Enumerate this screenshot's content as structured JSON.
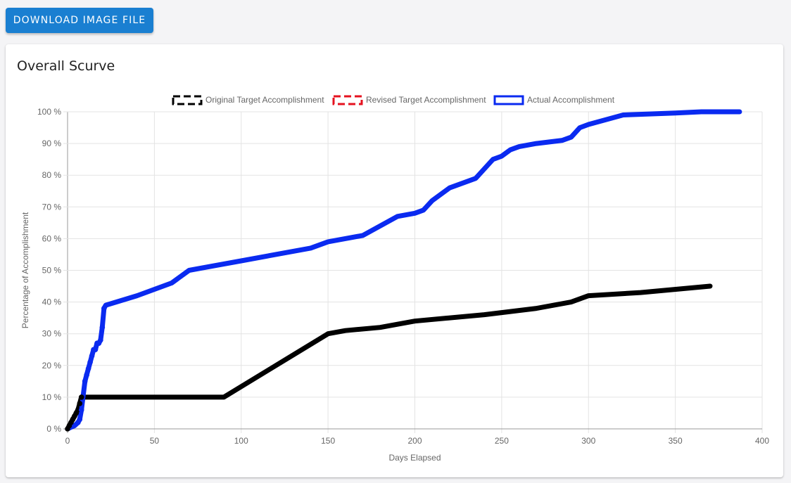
{
  "toolbar": {
    "download_label": "DOWNLOAD IMAGE FILE"
  },
  "card": {
    "title": "Overall Scurve"
  },
  "chart_data": {
    "type": "line",
    "xlabel": "Days Elapsed",
    "ylabel": "Percentage of Accomplishment",
    "xlim": [
      0,
      400
    ],
    "ylim": [
      0,
      100
    ],
    "x_ticks": [
      0,
      50,
      100,
      150,
      200,
      250,
      300,
      350,
      400
    ],
    "y_ticks": [
      0,
      10,
      20,
      30,
      40,
      50,
      60,
      70,
      80,
      90,
      100
    ],
    "y_tick_suffix": " %",
    "grid": true,
    "legend_position": "top",
    "series": [
      {
        "name": "Original Target Accomplishment",
        "color": "#000000",
        "legend_style": "dashed",
        "points": [
          [
            0,
            0
          ],
          [
            1,
            1
          ],
          [
            2,
            2
          ],
          [
            3,
            3
          ],
          [
            4,
            4
          ],
          [
            5,
            5
          ],
          [
            6,
            6
          ],
          [
            7,
            8
          ],
          [
            8,
            10
          ],
          [
            20,
            10
          ],
          [
            40,
            10
          ],
          [
            60,
            10
          ],
          [
            80,
            10
          ],
          [
            90,
            10
          ],
          [
            150,
            30
          ],
          [
            160,
            31
          ],
          [
            180,
            32
          ],
          [
            200,
            34
          ],
          [
            240,
            36
          ],
          [
            270,
            38
          ],
          [
            290,
            40
          ],
          [
            300,
            42
          ],
          [
            330,
            43
          ],
          [
            370,
            45
          ]
        ],
        "marker_points": [
          [
            0,
            0
          ],
          [
            1,
            1
          ],
          [
            2,
            2
          ],
          [
            3,
            3
          ],
          [
            4,
            4
          ],
          [
            5,
            5
          ],
          [
            6,
            6
          ],
          [
            7,
            8
          ],
          [
            8,
            10
          ]
        ]
      },
      {
        "name": "Revised Target Accomplishment",
        "color": "#e5121f",
        "legend_style": "dashed",
        "points": []
      },
      {
        "name": "Actual Accomplishment",
        "color": "#0a2af0",
        "legend_style": "solid",
        "points": [
          [
            0,
            0
          ],
          [
            2,
            0.5
          ],
          [
            4,
            1
          ],
          [
            6,
            2
          ],
          [
            7,
            3
          ],
          [
            8,
            6
          ],
          [
            10,
            15
          ],
          [
            11,
            17
          ],
          [
            12,
            19
          ],
          [
            13,
            21
          ],
          [
            14,
            23
          ],
          [
            15,
            25
          ],
          [
            16,
            25
          ],
          [
            17,
            27
          ],
          [
            18,
            27
          ],
          [
            19,
            28
          ],
          [
            20,
            32
          ],
          [
            21,
            38
          ],
          [
            22,
            39
          ],
          [
            40,
            42
          ],
          [
            60,
            46
          ],
          [
            70,
            50
          ],
          [
            100,
            53
          ],
          [
            140,
            57
          ],
          [
            150,
            59
          ],
          [
            170,
            61
          ],
          [
            190,
            67
          ],
          [
            200,
            68
          ],
          [
            205,
            69
          ],
          [
            210,
            72
          ],
          [
            220,
            76
          ],
          [
            235,
            79
          ],
          [
            245,
            85
          ],
          [
            250,
            86
          ],
          [
            255,
            88
          ],
          [
            260,
            89
          ],
          [
            270,
            90
          ],
          [
            285,
            91
          ],
          [
            290,
            92
          ],
          [
            295,
            95
          ],
          [
            300,
            96
          ],
          [
            320,
            99
          ],
          [
            350,
            99.6
          ],
          [
            365,
            100
          ],
          [
            387,
            100
          ]
        ],
        "marker_points": [
          [
            6,
            2
          ],
          [
            7,
            3
          ],
          [
            8,
            6
          ],
          [
            10,
            15
          ],
          [
            11,
            17
          ],
          [
            12,
            19
          ],
          [
            13,
            21
          ],
          [
            14,
            23
          ],
          [
            15,
            25
          ],
          [
            16,
            25
          ],
          [
            17,
            27
          ],
          [
            18,
            27
          ],
          [
            19,
            28
          ],
          [
            20,
            32
          ],
          [
            21,
            38
          ]
        ]
      }
    ]
  }
}
